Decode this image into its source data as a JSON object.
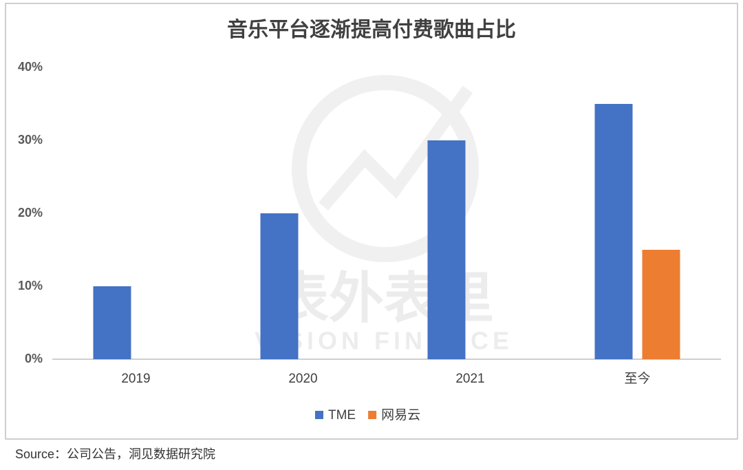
{
  "chart_data": {
    "type": "bar",
    "title": "音乐平台逐渐提高付费歌曲占比",
    "categories": [
      "2019",
      "2020",
      "2021",
      "至今"
    ],
    "series": [
      {
        "name": "TME",
        "color": "#4472c4",
        "values": [
          10,
          20,
          30,
          35
        ]
      },
      {
        "name": "网易云",
        "color": "#ed7d31",
        "values": [
          null,
          null,
          null,
          15
        ]
      }
    ],
    "ylim": [
      0,
      40
    ],
    "yticks": [
      {
        "value": 0,
        "label": "0%"
      },
      {
        "value": 10,
        "label": "10%"
      },
      {
        "value": 20,
        "label": "20%"
      },
      {
        "value": 30,
        "label": "30%"
      },
      {
        "value": 40,
        "label": "40%"
      }
    ],
    "grid": false,
    "legend": "bottom",
    "watermark": {
      "text": "表外表里",
      "subtext": "VISION FINANCE"
    }
  },
  "source": "Source：公司公告，洞见数据研究院"
}
